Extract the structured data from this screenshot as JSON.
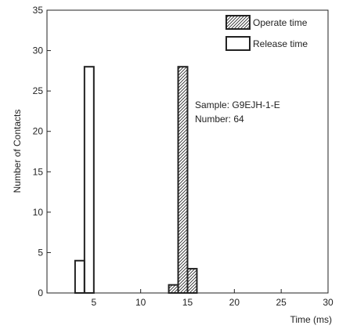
{
  "chart_data": {
    "type": "bar",
    "title": "",
    "xlabel": "Time (ms)",
    "ylabel": "Number of Contacts",
    "xlim": [
      0,
      30
    ],
    "ylim": [
      0,
      35
    ],
    "x_ticks": [
      5,
      10,
      15,
      20,
      25,
      30
    ],
    "y_ticks": [
      0,
      5,
      10,
      15,
      20,
      25,
      30,
      35
    ],
    "grid": false,
    "legend_position": "top-right",
    "bin_width": 1,
    "series": [
      {
        "name": "Operate time",
        "style": "hatched",
        "bins": [
          {
            "x0": 13,
            "value": 1
          },
          {
            "x0": 14,
            "value": 28
          },
          {
            "x0": 15,
            "value": 3
          }
        ]
      },
      {
        "name": "Release time",
        "style": "outline",
        "bins": [
          {
            "x0": 3,
            "value": 4
          },
          {
            "x0": 4,
            "value": 28
          }
        ]
      }
    ],
    "annotation": {
      "lines": [
        "Sample: G9EJH-1-E",
        "Number: 64"
      ]
    }
  },
  "colors": {
    "ink": "#222222",
    "background": "#ffffff"
  }
}
